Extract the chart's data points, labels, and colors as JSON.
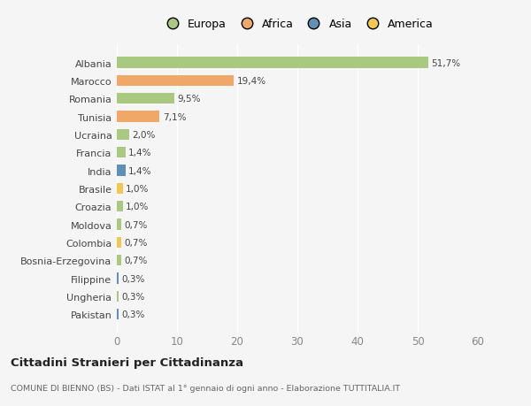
{
  "categories": [
    "Albania",
    "Marocco",
    "Romania",
    "Tunisia",
    "Ucraina",
    "Francia",
    "India",
    "Brasile",
    "Croazia",
    "Moldova",
    "Colombia",
    "Bosnia-Erzegovina",
    "Filippine",
    "Ungheria",
    "Pakistan"
  ],
  "values": [
    51.7,
    19.4,
    9.5,
    7.1,
    2.0,
    1.4,
    1.4,
    1.0,
    1.0,
    0.7,
    0.7,
    0.7,
    0.3,
    0.3,
    0.3
  ],
  "labels": [
    "51,7%",
    "19,4%",
    "9,5%",
    "7,1%",
    "2,0%",
    "1,4%",
    "1,4%",
    "1,0%",
    "1,0%",
    "0,7%",
    "0,7%",
    "0,7%",
    "0,3%",
    "0,3%",
    "0,3%"
  ],
  "continents": [
    "Europa",
    "Africa",
    "Europa",
    "Africa",
    "Europa",
    "Europa",
    "Asia",
    "America",
    "Europa",
    "Europa",
    "America",
    "Europa",
    "Asia",
    "Europa",
    "Asia"
  ],
  "colors": {
    "Europa": "#a8c97f",
    "Africa": "#f0a868",
    "Asia": "#6090b8",
    "America": "#f0c850"
  },
  "background_color": "#f5f5f5",
  "title": "Cittadini Stranieri per Cittadinanza",
  "subtitle": "COMUNE DI BIENNO (BS) - Dati ISTAT al 1° gennaio di ogni anno - Elaborazione TUTTITALIA.IT",
  "xlim": [
    0,
    60
  ],
  "xticks": [
    0,
    10,
    20,
    30,
    40,
    50,
    60
  ],
  "grid_color": "#ffffff",
  "bar_height": 0.6,
  "legend_order": [
    "Europa",
    "Africa",
    "Asia",
    "America"
  ]
}
